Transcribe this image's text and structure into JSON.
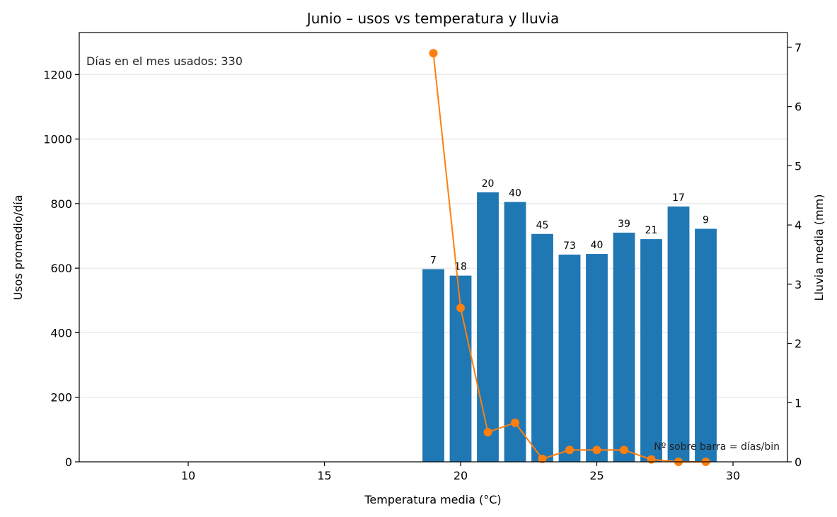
{
  "chart_data": {
    "type": "bar",
    "title": "Junio – usos vs temperatura y lluvia",
    "xlabel": "Temperatura media (°C)",
    "ylabel": "Usos promedio/día",
    "y2label": "Lluvia media (mm)",
    "xlim": [
      6,
      32
    ],
    "ylim": [
      0,
      1330
    ],
    "y2lim": [
      0,
      7.25
    ],
    "xticks": [
      10,
      15,
      20,
      25,
      30
    ],
    "yticks": [
      0,
      200,
      400,
      600,
      800,
      1000,
      1200
    ],
    "y2ticks": [
      0,
      1,
      2,
      3,
      4,
      5,
      6,
      7
    ],
    "grid": "horizontal",
    "bar_color": "#1f77b4",
    "line_color": "#ff7f0e",
    "x": [
      19,
      20,
      21,
      22,
      23,
      24,
      25,
      26,
      27,
      28,
      29
    ],
    "series": [
      {
        "kind": "bar",
        "axis": "left",
        "values": [
          597,
          577,
          835,
          805,
          706,
          642,
          644,
          710,
          690,
          791,
          722
        ],
        "labels": [
          "7",
          "18",
          "20",
          "40",
          "45",
          "73",
          "40",
          "39",
          "21",
          "17",
          "9"
        ]
      },
      {
        "kind": "line",
        "axis": "right",
        "values": [
          6.9,
          2.6,
          0.5,
          0.66,
          0.05,
          0.2,
          0.2,
          0.2,
          0.04,
          0.0,
          0.0
        ]
      }
    ],
    "annotations": {
      "top_left": "Días en el mes usados: 330",
      "bottom_right": "Nº sobre barra = días/bin"
    }
  }
}
